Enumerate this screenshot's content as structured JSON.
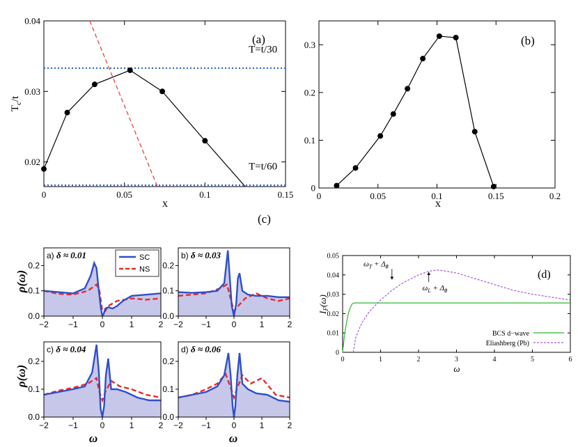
{
  "figure_label_c": "(c)",
  "chart_data": [
    {
      "id": "a",
      "type": "line",
      "panel_label": "(a)",
      "xlabel": "x",
      "ylabel": "T_c/t",
      "xlim": [
        0,
        0.15
      ],
      "ylim": [
        0.0165,
        0.04
      ],
      "xticks": [
        0,
        0.05,
        0.1,
        0.15
      ],
      "xtick_labels": [
        "0",
        "0.05",
        "0.1",
        "0.15"
      ],
      "yticks": [
        0.02,
        0.03,
        0.04
      ],
      "ytick_labels": [
        "0.02",
        "0.03",
        "0.04"
      ],
      "series": [
        {
          "role": "data",
          "x": [
            0,
            0.0145,
            0.0315,
            0.0535,
            0.0735,
            0.1,
            0.125
          ],
          "y": [
            0.019,
            0.027,
            0.031,
            0.033,
            0.03,
            0.023,
            0.0165
          ],
          "color": "#000000",
          "markers": [
            true,
            true,
            true,
            true,
            true,
            true,
            false
          ]
        },
        {
          "role": "boundary",
          "x": [
            0.0285,
            0.0705
          ],
          "y": [
            0.04,
            0.0165
          ],
          "color": "#e8413c",
          "dash": "6,4"
        },
        {
          "role": "hline",
          "y": 0.0333,
          "color": "#2f6fd0",
          "dash": "2,3"
        },
        {
          "role": "hline",
          "y": 0.0167,
          "color": "#2f6fd0",
          "dash": "2,3"
        }
      ],
      "annotations": [
        {
          "text": "T=t/30",
          "x": 0.136,
          "y": 0.0355
        },
        {
          "text": "T=t/60",
          "x": 0.136,
          "y": 0.0189
        }
      ]
    },
    {
      "id": "b",
      "type": "line",
      "panel_label": "(b)",
      "xlabel": "x",
      "ylabel": "",
      "xlim": [
        0,
        0.2
      ],
      "ylim": [
        0,
        0.35
      ],
      "xticks": [
        0,
        0.05,
        0.1,
        0.15,
        0.2
      ],
      "xtick_labels": [
        "0",
        "0.05",
        "0.1",
        "0.15",
        "0.2"
      ],
      "yticks": [
        0,
        0.1,
        0.2,
        0.3
      ],
      "ytick_labels": [
        "0",
        "0.1",
        "0.2",
        "0.3"
      ],
      "series": [
        {
          "x": [
            0.015,
            0.031,
            0.052,
            0.063,
            0.075,
            0.088,
            0.102,
            0.116,
            0.132,
            0.148
          ],
          "y": [
            0.005,
            0.042,
            0.109,
            0.155,
            0.208,
            0.271,
            0.318,
            0.315,
            0.118,
            0.003
          ],
          "color": "#000000"
        }
      ]
    },
    {
      "id": "c",
      "type": "area",
      "xlabel": "ω",
      "ylabel": "ρ(ω)",
      "xlim": [
        -2,
        2
      ],
      "ylim": [
        0,
        0.27
      ],
      "xticks": [
        -2,
        -1,
        0,
        1,
        2
      ],
      "xtick_labels": [
        "−2",
        "−1",
        "0",
        "1",
        "2"
      ],
      "yticks": [
        0,
        0.1,
        0.2
      ],
      "ytick_labels": [
        "0.0",
        "0.1",
        "0.2"
      ],
      "legend": {
        "placement": "top-right",
        "entries": [
          {
            "name": "SC",
            "color": "#2f4fc8"
          },
          {
            "name": "NS",
            "color": "#e62a2a"
          }
        ]
      },
      "subplots": [
        {
          "label": "a)",
          "delta": "δ ≈ 0.01",
          "SC": {
            "x": [
              -2,
              -1.5,
              -1,
              -0.6,
              -0.4,
              -0.28,
              -0.2,
              -0.12,
              -0.05,
              0,
              0.05,
              0.1,
              0.2,
              0.35,
              0.5,
              0.7,
              1,
              1.5,
              2
            ],
            "y": [
              0.1,
              0.095,
              0.09,
              0.11,
              0.16,
              0.21,
              0.19,
              0.1,
              0.03,
              0,
              0.01,
              0.03,
              0.035,
              0.03,
              0.04,
              0.06,
              0.08,
              0.085,
              0.09
            ]
          },
          "NS": {
            "x": [
              -2,
              -1.5,
              -1,
              -0.5,
              -0.2,
              -0.1,
              0,
              0.1,
              0.2,
              0.5,
              1,
              1.5,
              2
            ],
            "y": [
              0.1,
              0.088,
              0.085,
              0.1,
              0.125,
              0.1,
              0.02,
              0.02,
              0.04,
              0.06,
              0.07,
              0.065,
              0.07
            ]
          }
        },
        {
          "label": "b)",
          "delta": "δ ≈ 0.03",
          "SC": {
            "x": [
              -2,
              -1.5,
              -1,
              -0.6,
              -0.35,
              -0.22,
              -0.15,
              -0.08,
              0,
              0.08,
              0.14,
              0.2,
              0.3,
              0.5,
              0.8,
              1.2,
              1.6,
              2
            ],
            "y": [
              0.095,
              0.092,
              0.095,
              0.1,
              0.13,
              0.26,
              0.15,
              0.04,
              0,
              0.05,
              0.15,
              0.17,
              0.1,
              0.085,
              0.08,
              0.08,
              0.075,
              0.075
            ]
          },
          "NS": {
            "x": [
              -2,
              -1.5,
              -1,
              -0.5,
              -0.25,
              -0.1,
              0,
              0.15,
              0.4,
              0.8,
              1.2,
              1.6,
              2
            ],
            "y": [
              0.08,
              0.085,
              0.09,
              0.11,
              0.125,
              0.06,
              0.02,
              0.04,
              0.07,
              0.09,
              0.07,
              0.06,
              0.07
            ]
          }
        },
        {
          "label": "c)",
          "delta": "δ ≈ 0.04",
          "SC": {
            "x": [
              -2,
              -1.5,
              -1,
              -0.6,
              -0.35,
              -0.2,
              -0.12,
              -0.06,
              0,
              0.06,
              0.12,
              0.2,
              0.3,
              0.5,
              0.8,
              1.2,
              1.6,
              2
            ],
            "y": [
              0.08,
              0.09,
              0.1,
              0.11,
              0.16,
              0.26,
              0.16,
              0.03,
              0,
              0.04,
              0.15,
              0.21,
              0.1,
              0.1,
              0.09,
              0.07,
              0.06,
              0.06
            ]
          },
          "NS": {
            "x": [
              -2,
              -1.5,
              -1,
              -0.5,
              -0.2,
              -0.1,
              0,
              0.1,
              0.3,
              0.6,
              1,
              1.5,
              2
            ],
            "y": [
              0.08,
              0.095,
              0.105,
              0.12,
              0.14,
              0.09,
              0.06,
              0.09,
              0.13,
              0.11,
              0.1,
              0.08,
              0.07
            ]
          }
        },
        {
          "label": "d)",
          "delta": "δ ≈ 0.06",
          "SC": {
            "x": [
              -2,
              -1.5,
              -1,
              -0.6,
              -0.35,
              -0.2,
              -0.12,
              -0.05,
              0,
              0.05,
              0.12,
              0.2,
              0.3,
              0.5,
              0.8,
              1.2,
              1.6,
              2
            ],
            "y": [
              0.07,
              0.08,
              0.09,
              0.11,
              0.15,
              0.23,
              0.15,
              0.04,
              0,
              0.04,
              0.15,
              0.23,
              0.12,
              0.1,
              0.085,
              0.08,
              0.06,
              0.055
            ]
          },
          "NS": {
            "x": [
              -2,
              -1.5,
              -1,
              -0.6,
              -0.3,
              -0.1,
              0,
              0.1,
              0.3,
              0.6,
              1,
              1.5,
              2
            ],
            "y": [
              0.07,
              0.08,
              0.1,
              0.12,
              0.155,
              0.1,
              0.07,
              0.1,
              0.15,
              0.12,
              0.14,
              0.08,
              0.07
            ]
          }
        }
      ]
    },
    {
      "id": "d",
      "type": "line",
      "panel_label": "(d)",
      "xlabel": "ω",
      "ylabel": "I_F(ω)",
      "xlim": [
        0,
        6
      ],
      "ylim": [
        0,
        0.05
      ],
      "xticks": [
        0,
        1,
        2,
        3,
        4,
        5,
        6
      ],
      "xtick_labels": [
        "0",
        "1",
        "2",
        "3",
        "4",
        "5",
        "6"
      ],
      "yticks": [
        0,
        0.01,
        0.02,
        0.03,
        0.04,
        0.05
      ],
      "ytick_labels": [
        "0",
        "0.01",
        "0.02",
        "0.03",
        "0.04",
        "0.05"
      ],
      "series": [
        {
          "name": "BCS d−wave",
          "color": "#2cb82c",
          "dash": "",
          "x": [
            0,
            0.05,
            0.1,
            0.15,
            0.2,
            0.25,
            0.3,
            1,
            2,
            3,
            4,
            5,
            6
          ],
          "y": [
            0,
            0.009,
            0.015,
            0.02,
            0.023,
            0.025,
            0.0255,
            0.0255,
            0.0255,
            0.0255,
            0.0255,
            0.0255,
            0.0255
          ]
        },
        {
          "name": "Eliashberg (Pb)",
          "color": "#a855d8",
          "dash": "3,2",
          "x": [
            0.28,
            0.35,
            0.5,
            0.7,
            1,
            1.3,
            1.6,
            2,
            2.3,
            2.5,
            2.7,
            3,
            3.5,
            4,
            4.5,
            5,
            5.5,
            6
          ],
          "y": [
            0,
            0.008,
            0.015,
            0.021,
            0.027,
            0.032,
            0.036,
            0.04,
            0.042,
            0.0425,
            0.042,
            0.041,
            0.038,
            0.035,
            0.032,
            0.03,
            0.0285,
            0.027
          ]
        }
      ],
      "legend": {
        "placement": "bottom-right"
      },
      "annotations": [
        {
          "text": "ω_T + Δ_0",
          "arrow_to": [
            1.3,
            0.0365
          ],
          "x": 0.55,
          "y": 0.0445
        },
        {
          "text": "ω_L + Δ_0",
          "arrow_to": [
            2.27,
            0.0425
          ],
          "x": 2.1,
          "y": 0.032
        }
      ]
    }
  ]
}
